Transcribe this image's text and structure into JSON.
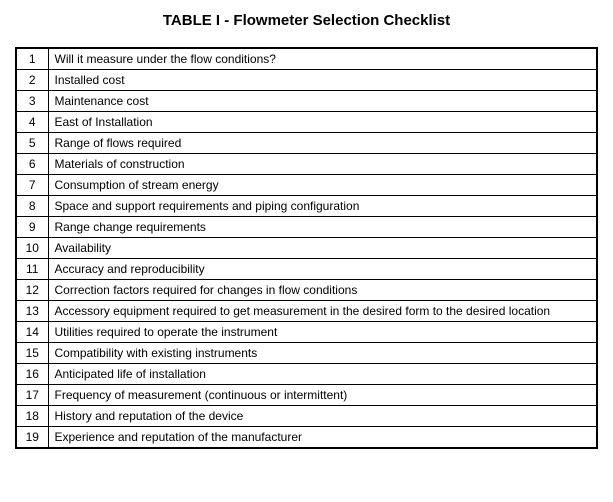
{
  "title": "TABLE I - Flowmeter Selection Checklist",
  "table": {
    "border_color": "#000000",
    "outer_border_width": 2,
    "inner_border_width": 1,
    "background_color": "#ffffff",
    "text_color": "#000000",
    "font_size": 12,
    "num_col_width": 32,
    "rows": [
      {
        "n": "1",
        "text": "Will it measure under the flow conditions?"
      },
      {
        "n": "2",
        "text": "Installed cost"
      },
      {
        "n": "3",
        "text": "Maintenance cost"
      },
      {
        "n": "4",
        "text": "East of Installation"
      },
      {
        "n": "5",
        "text": "Range of flows required"
      },
      {
        "n": "6",
        "text": "Materials of construction"
      },
      {
        "n": "7",
        "text": "Consumption of stream energy"
      },
      {
        "n": "8",
        "text": "Space and support requirements and piping configuration"
      },
      {
        "n": "9",
        "text": "Range change requirements"
      },
      {
        "n": "10",
        "text": "Availability"
      },
      {
        "n": "11",
        "text": "Accuracy and reproducibility"
      },
      {
        "n": "12",
        "text": "Correction factors required for changes in flow conditions"
      },
      {
        "n": "13",
        "text": "Accessory equipment required to get measurement in the desired form to the desired location"
      },
      {
        "n": "14",
        "text": "Utilities required to operate the instrument"
      },
      {
        "n": "15",
        "text": "Compatibility with existing instruments"
      },
      {
        "n": "16",
        "text": "Anticipated life of installation"
      },
      {
        "n": "17",
        "text": "Frequency of measurement (continuous or intermittent)"
      },
      {
        "n": "18",
        "text": "History and reputation of the device"
      },
      {
        "n": "19",
        "text": "Experience and reputation of the manufacturer"
      }
    ]
  }
}
